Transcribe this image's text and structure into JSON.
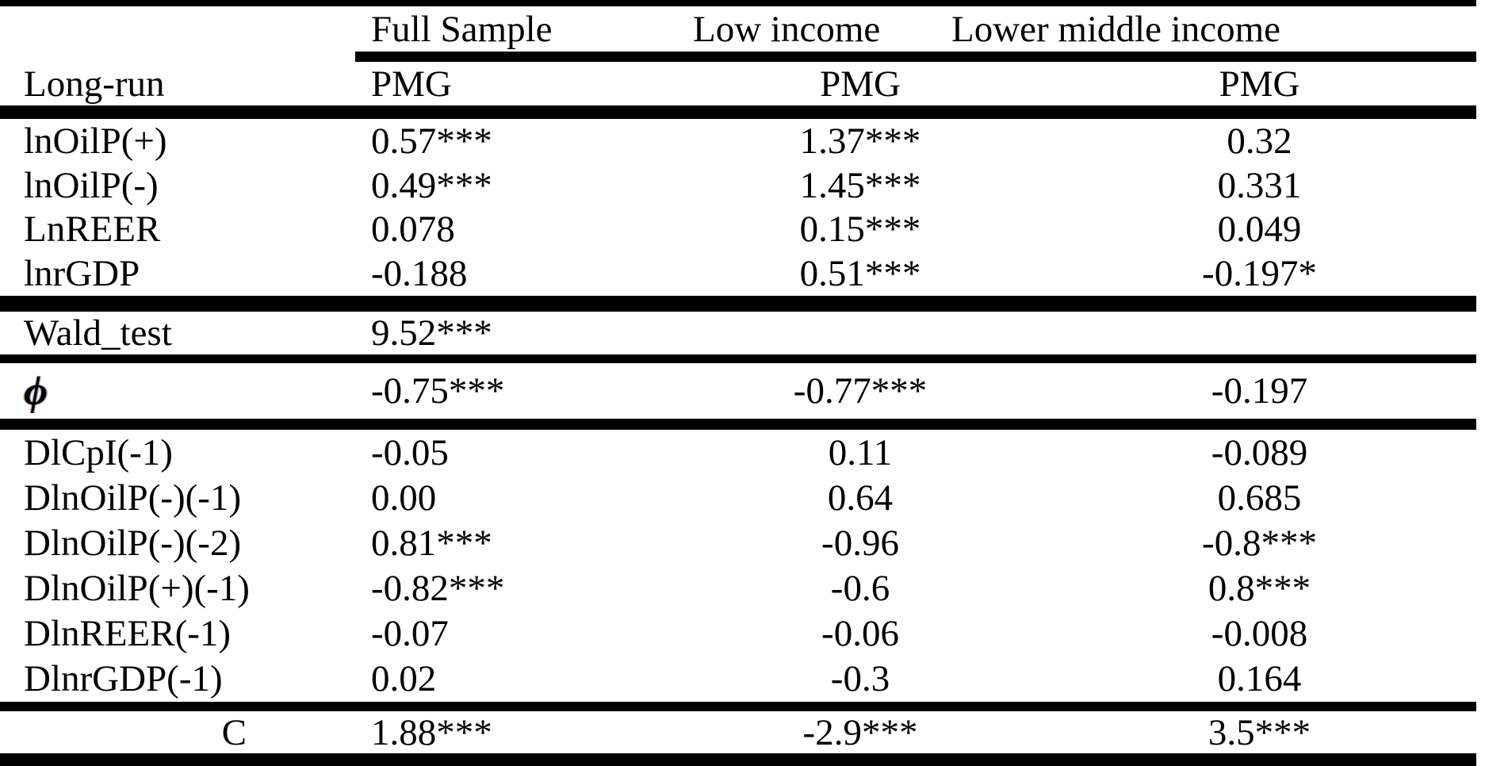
{
  "table": {
    "group_headers": {
      "full_sample": "Full Sample",
      "low_income": "Low income",
      "lower_middle_income": "Lower middle income"
    },
    "header": {
      "row_label": "Long-run",
      "full_sample": "PMG",
      "low_income": "PMG",
      "lower_middle_income": "PMG"
    },
    "long_run_rows": [
      {
        "label": "lnOilP(+)",
        "full_sample": "0.57***",
        "low_income": "1.37***",
        "lower_middle_income": "0.32"
      },
      {
        "label": "lnOilP(-)",
        "full_sample": "0.49***",
        "low_income": "1.45***",
        "lower_middle_income": "0.331"
      },
      {
        "label": "LnREER",
        "full_sample": "0.078",
        "low_income": "0.15***",
        "lower_middle_income": "0.049"
      },
      {
        "label": "lnrGDP",
        "full_sample": "-0.188",
        "low_income": "0.51***",
        "lower_middle_income": "-0.197*"
      }
    ],
    "wald_row": {
      "label": "Wald_test",
      "full_sample": "9.52***",
      "low_income": "",
      "lower_middle_income": ""
    },
    "phi_row": {
      "label": "ϕ",
      "full_sample": "-0.75***",
      "low_income": "-0.77***",
      "lower_middle_income": "-0.197"
    },
    "short_run_rows": [
      {
        "label": "DlCpI(-1)",
        "full_sample": "-0.05",
        "low_income": "0.11",
        "lower_middle_income": "-0.089"
      },
      {
        "label": "DlnOilP(-)(-1)",
        "full_sample": "0.00",
        "low_income": "0.64",
        "lower_middle_income": "0.685"
      },
      {
        "label": "DlnOilP(-)(-2)",
        "full_sample": "0.81***",
        "low_income": "-0.96",
        "lower_middle_income": "-0.8***"
      },
      {
        "label": "DlnOilP(+)(-1)",
        "full_sample": "-0.82***",
        "low_income": "-0.6",
        "lower_middle_income": "0.8***"
      },
      {
        "label": "DlnREER(-1)",
        "full_sample": "-0.07",
        "low_income": "-0.06",
        "lower_middle_income": "-0.008"
      },
      {
        "label": "DlnrGDP(-1)",
        "full_sample": "0.02",
        "low_income": "-0.3",
        "lower_middle_income": "0.164"
      }
    ],
    "constant_row": {
      "label": "C",
      "full_sample": "1.88***",
      "low_income": "-2.9***",
      "lower_middle_income": "3.5***"
    }
  },
  "colors": {
    "text": "#000000",
    "background": "#ffffff",
    "rule": "#000000"
  }
}
